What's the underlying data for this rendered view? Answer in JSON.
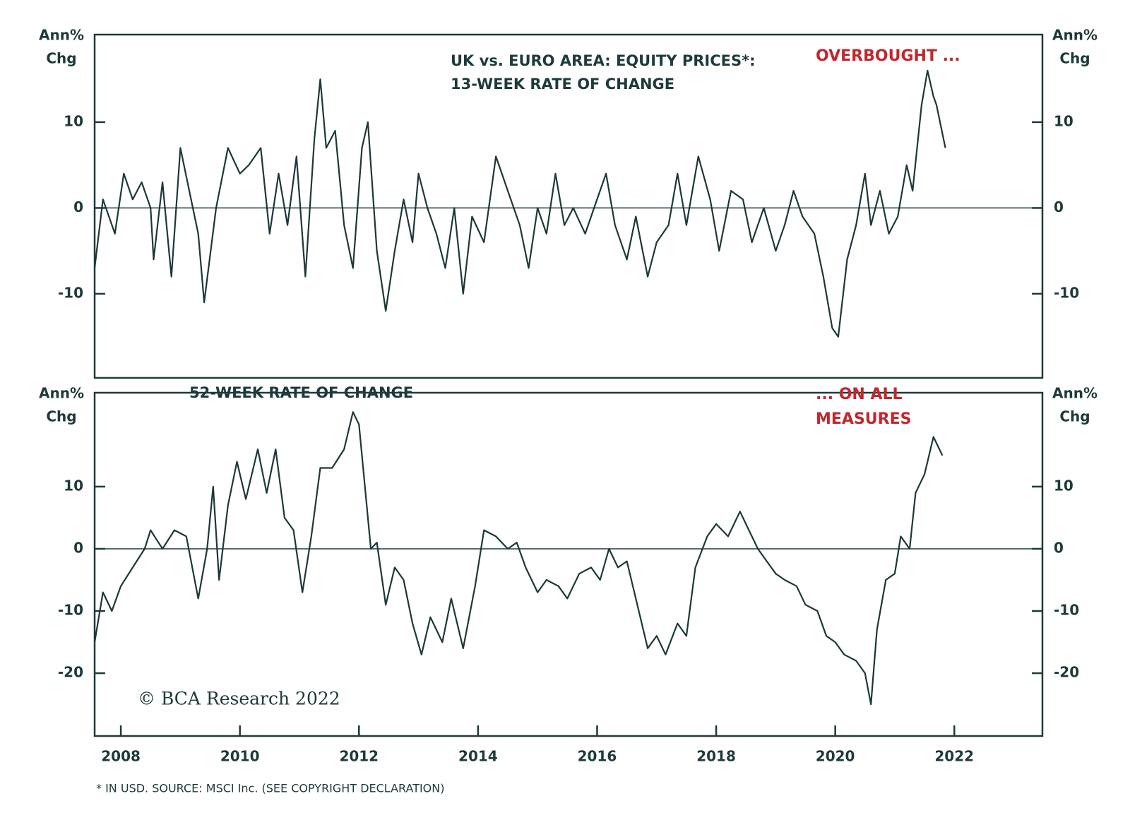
{
  "chart_data": [
    {
      "type": "line",
      "title": [
        "UK vs. EURO AREA: EQUITY PRICES*:",
        "13-WEEK RATE OF CHANGE"
      ],
      "y_label": [
        "Ann%",
        "Chg"
      ],
      "annotations": [
        "OVERBOUGHT ..."
      ],
      "color": "#1c3838",
      "xlim": [
        2007.56,
        2023.48
      ],
      "ylim": [
        -19.8,
        20.2
      ],
      "yticks": [
        -10,
        0,
        10
      ],
      "x": [
        2007.56,
        2007.7,
        2007.9,
        2008.05,
        2008.2,
        2008.35,
        2008.5,
        2008.55,
        2008.7,
        2008.85,
        2009.0,
        2009.15,
        2009.3,
        2009.4,
        2009.6,
        2009.8,
        2010.0,
        2010.15,
        2010.35,
        2010.5,
        2010.65,
        2010.8,
        2010.95,
        2011.1,
        2011.25,
        2011.35,
        2011.45,
        2011.6,
        2011.75,
        2011.9,
        2012.05,
        2012.15,
        2012.3,
        2012.45,
        2012.6,
        2012.75,
        2012.9,
        2013.0,
        2013.15,
        2013.3,
        2013.45,
        2013.6,
        2013.75,
        2013.9,
        2014.1,
        2014.3,
        2014.5,
        2014.7,
        2014.85,
        2015.0,
        2015.15,
        2015.3,
        2015.45,
        2015.6,
        2015.8,
        2015.95,
        2016.15,
        2016.3,
        2016.5,
        2016.65,
        2016.85,
        2017.0,
        2017.2,
        2017.35,
        2017.5,
        2017.7,
        2017.9,
        2018.05,
        2018.25,
        2018.45,
        2018.6,
        2018.8,
        2019.0,
        2019.15,
        2019.3,
        2019.45,
        2019.65,
        2019.8,
        2019.95,
        2020.05,
        2020.2,
        2020.35,
        2020.5,
        2020.6,
        2020.75,
        2020.9,
        2021.05,
        2021.2,
        2021.3,
        2021.45,
        2021.55,
        2021.65,
        2021.7,
        2021.85
      ],
      "values": [
        -7,
        1,
        -3,
        4,
        1,
        3,
        0,
        -6,
        3,
        -8,
        7,
        2,
        -3,
        -11,
        0,
        7,
        4,
        5,
        7,
        -3,
        4,
        -2,
        6,
        -8,
        8,
        15,
        7,
        9,
        -2,
        -7,
        7,
        10,
        -5,
        -12,
        -5,
        1,
        -4,
        4,
        0,
        -3,
        -7,
        0,
        -10,
        -1,
        -4,
        6,
        2,
        -2,
        -7,
        0,
        -3,
        4,
        -2,
        0,
        -3,
        0,
        4,
        -2,
        -6,
        -1,
        -8,
        -4,
        -2,
        4,
        -2,
        6,
        1,
        -5,
        2,
        1,
        -4,
        0,
        -5,
        -2,
        2,
        -1,
        -3,
        -8,
        -14,
        -15,
        -6,
        -2,
        4,
        -2,
        2,
        -3,
        -1,
        5,
        2,
        12,
        16,
        13,
        12,
        7
      ]
    },
    {
      "type": "line",
      "title": [
        "52-WEEK RATE OF CHANGE"
      ],
      "y_label": [
        "Ann%",
        "Chg"
      ],
      "annotations": [
        "... ON ALL",
        "MEASURES"
      ],
      "color": "#1c3838",
      "xlim": [
        2007.56,
        2023.48
      ],
      "xticks": [
        2008,
        2010,
        2012,
        2014,
        2016,
        2018,
        2020,
        2022
      ],
      "ylim": [
        -30.1,
        25.1
      ],
      "yticks": [
        -20,
        -10,
        0,
        10
      ],
      "x": [
        2007.56,
        2007.7,
        2007.85,
        2008.0,
        2008.2,
        2008.4,
        2008.5,
        2008.7,
        2008.9,
        2009.1,
        2009.3,
        2009.45,
        2009.55,
        2009.65,
        2009.8,
        2009.95,
        2010.1,
        2010.3,
        2010.45,
        2010.6,
        2010.75,
        2010.9,
        2011.05,
        2011.2,
        2011.35,
        2011.55,
        2011.75,
        2011.9,
        2012.0,
        2012.1,
        2012.2,
        2012.3,
        2012.45,
        2012.6,
        2012.75,
        2012.9,
        2013.05,
        2013.2,
        2013.4,
        2013.55,
        2013.75,
        2013.95,
        2014.1,
        2014.3,
        2014.5,
        2014.65,
        2014.8,
        2015.0,
        2015.15,
        2015.35,
        2015.5,
        2015.7,
        2015.9,
        2016.05,
        2016.2,
        2016.35,
        2016.5,
        2016.7,
        2016.85,
        2017.0,
        2017.15,
        2017.35,
        2017.5,
        2017.65,
        2017.85,
        2018.0,
        2018.2,
        2018.4,
        2018.55,
        2018.7,
        2018.85,
        2019.0,
        2019.15,
        2019.35,
        2019.5,
        2019.7,
        2019.85,
        2020.0,
        2020.15,
        2020.35,
        2020.5,
        2020.6,
        2020.7,
        2020.85,
        2021.0,
        2021.1,
        2021.25,
        2021.35,
        2021.5,
        2021.65,
        2021.8
      ],
      "values": [
        -15,
        -7,
        -10,
        -6,
        -3,
        0,
        3,
        0,
        3,
        2,
        -8,
        0,
        10,
        -5,
        7,
        14,
        8,
        16,
        9,
        16,
        5,
        3,
        -7,
        2,
        13,
        13,
        16,
        22,
        20,
        10,
        0,
        1,
        -9,
        -3,
        -5,
        -12,
        -17,
        -11,
        -15,
        -8,
        -16,
        -6,
        3,
        2,
        0,
        1,
        -3,
        -7,
        -5,
        -6,
        -8,
        -4,
        -3,
        -5,
        0,
        -3,
        -2,
        -10,
        -16,
        -14,
        -17,
        -12,
        -14,
        -3,
        2,
        4,
        2,
        6,
        3,
        0,
        -2,
        -4,
        -5,
        -6,
        -9,
        -10,
        -14,
        -15,
        -17,
        -18,
        -20,
        -25,
        -13,
        -5,
        -4,
        2,
        0,
        9,
        12,
        18,
        15
      ]
    }
  ],
  "watermark": "© BCA Research 2022",
  "footnote": "* IN USD. SOURCE: MSCI Inc. (SEE COPYRIGHT DECLARATION)"
}
